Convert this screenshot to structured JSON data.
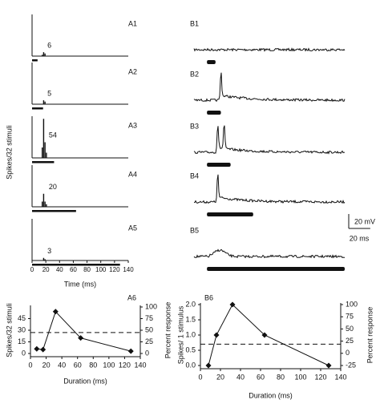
{
  "chart_data": [
    {
      "type": "psth",
      "ylabel": "Spikes/32 stimuli",
      "xlabel": "Time (ms)",
      "xlim": [
        0,
        140
      ],
      "xticks": [
        0,
        20,
        40,
        60,
        80,
        100,
        120,
        140
      ],
      "ylim": [
        0,
        32
      ],
      "panels": [
        {
          "label": "A1",
          "count": 6,
          "stimulus": [
            0,
            8
          ],
          "bins": [
            14,
            16,
            18,
            20
          ],
          "counts": [
            1,
            3,
            2
          ]
        },
        {
          "label": "A2",
          "count": 5,
          "stimulus": [
            0,
            16
          ],
          "bins": [
            16,
            18,
            20
          ],
          "counts": [
            3,
            2
          ]
        },
        {
          "label": "A3",
          "count": 54,
          "stimulus": [
            0,
            32
          ],
          "bins": [
            14,
            16,
            18,
            20,
            22
          ],
          "counts": [
            8,
            30,
            12,
            4
          ]
        },
        {
          "label": "A4",
          "count": 20,
          "stimulus": [
            0,
            64
          ],
          "bins": [
            14,
            16,
            18,
            20,
            22
          ],
          "counts": [
            4,
            10,
            4,
            2
          ]
        },
        {
          "label": "A5",
          "count": 3,
          "stimulus": [
            0,
            128
          ],
          "bins": [
            16,
            18,
            20
          ],
          "counts": [
            2,
            1
          ]
        }
      ]
    },
    {
      "type": "trace",
      "xlim": [
        -12,
        128
      ],
      "panels": [
        {
          "label": "B1",
          "stimulus": [
            0,
            8
          ],
          "spikes": []
        },
        {
          "label": "B2",
          "stimulus": [
            0,
            13
          ],
          "spikes": [
            13
          ]
        },
        {
          "label": "B3",
          "stimulus": [
            0,
            22
          ],
          "spikes": [
            10,
            16
          ]
        },
        {
          "label": "B4",
          "stimulus": [
            0,
            43
          ],
          "spikes": [
            10
          ]
        },
        {
          "label": "B5",
          "stimulus": [
            0,
            128
          ],
          "spikes": []
        }
      ],
      "scalebars": {
        "voltage": {
          "value": 20,
          "label": "20 mV"
        },
        "time": {
          "value": 20,
          "label": "20 ms"
        }
      }
    },
    {
      "type": "line",
      "label": "A6",
      "xlabel": "Duration (ms)",
      "ylabel": "Spikes/32 stimuli",
      "y2label": "Percent response",
      "x": [
        8,
        16,
        32,
        64,
        128
      ],
      "values": [
        6,
        5,
        54,
        20,
        3
      ],
      "xlim": [
        0,
        140
      ],
      "xticks": [
        0,
        20,
        40,
        60,
        80,
        100,
        120,
        140
      ],
      "ylim": [
        0,
        60
      ],
      "yticks": [
        0,
        15,
        30,
        45
      ],
      "y2lim": [
        0,
        100
      ],
      "y2ticks": [
        0,
        25,
        50,
        75,
        100
      ],
      "threshold": 27
    },
    {
      "type": "line",
      "label": "B6",
      "xlabel": "Duration (ms)",
      "ylabel": "Spikes/ 1 stimulus",
      "y2label": "Percent response",
      "x": [
        8,
        16,
        32,
        64,
        128
      ],
      "values": [
        0,
        1,
        2,
        1,
        0
      ],
      "xlim": [
        0,
        140
      ],
      "xticks": [
        0,
        20,
        40,
        60,
        80,
        100,
        120,
        140
      ],
      "ylim": [
        0,
        2
      ],
      "yticks": [
        {
          "value": 0,
          "label": "0.0"
        },
        {
          "value": 0.5,
          "label": "0.5"
        },
        {
          "value": 1,
          "label": "1.0"
        },
        {
          "value": 1.5,
          "label": "1.5"
        },
        {
          "value": 2,
          "label": "2.0"
        }
      ],
      "y2lim": [
        -25,
        100
      ],
      "y2ticks": [
        -25,
        0,
        25,
        50,
        75,
        100
      ],
      "threshold": 0.7
    }
  ]
}
